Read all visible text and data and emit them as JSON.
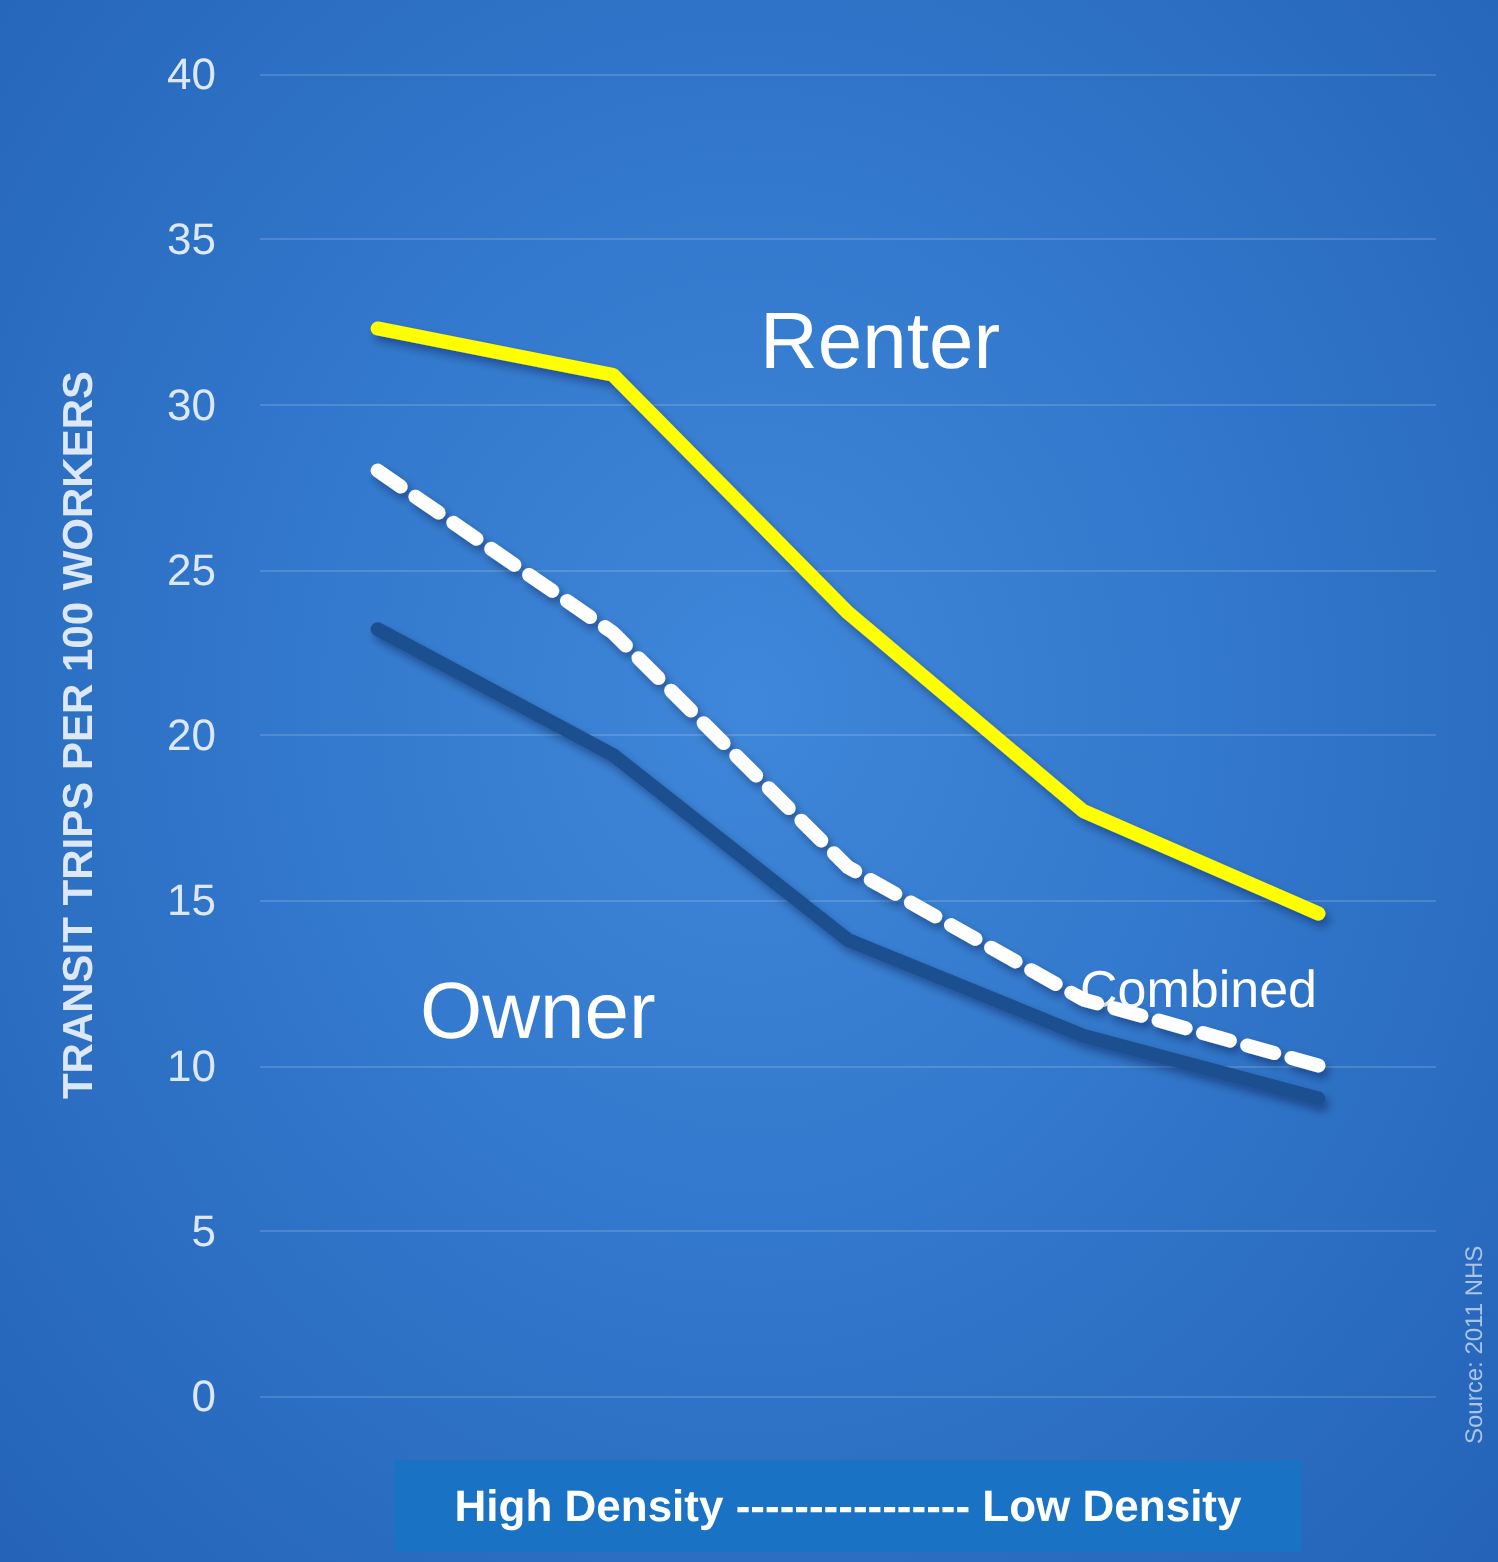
{
  "chart_data": {
    "type": "line",
    "xlabel": "High Density ---------------- Low Density",
    "ylabel": "TRANSIT TRIPS PER 100 WORKERS",
    "categories": [
      null,
      null,
      null,
      null,
      null
    ],
    "series": [
      {
        "name": "Renter",
        "color": "#ffff00",
        "values": [
          32.3,
          30.9,
          23.7,
          17.7,
          14.6
        ],
        "line_style": "solid"
      },
      {
        "name": "Combined",
        "color": "#ffffff",
        "values": [
          28.0,
          23.1,
          16.0,
          12.0,
          10.0
        ],
        "line_style": "dashed"
      },
      {
        "name": "Owner",
        "color": "#1f4f8f",
        "values": [
          23.2,
          19.4,
          13.8,
          10.9,
          9.0
        ],
        "line_style": "solid"
      }
    ],
    "ylim": [
      0,
      40
    ],
    "yticks": [
      0,
      5,
      10,
      15,
      20,
      25,
      30,
      35,
      40
    ],
    "grid": "y",
    "legend": false,
    "marker": "none",
    "annotations": [
      "Source: 2011 NHS"
    ]
  }
}
